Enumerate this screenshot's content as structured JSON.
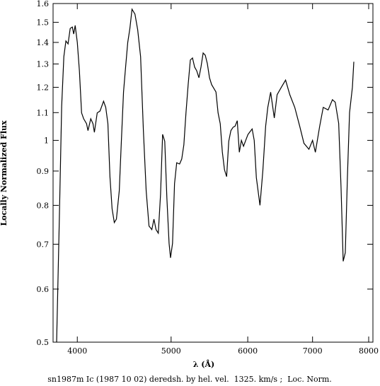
{
  "chart_data": {
    "type": "line",
    "xlabel": "λ (Å)",
    "ylabel": "Locally Normalized Flux",
    "caption": "sn1987m Ic (1987 10 02) deredsh. by hel. vel.  1325. km/s ;  Loc. Norm.",
    "xscale": "log",
    "yscale": "log",
    "xlim": [
      3776,
      8081
    ],
    "ylim": [
      0.5,
      1.6
    ],
    "xticks": [
      4000,
      5000,
      6000,
      7000,
      8000
    ],
    "yticks": [
      0.5,
      0.6,
      0.7,
      0.8,
      0.9,
      1,
      1.1,
      1.2,
      1.3,
      1.4,
      1.5,
      1.6
    ],
    "color": "#000000",
    "x": [
      3808,
      3834,
      3854,
      3874,
      3893,
      3913,
      3933,
      3953,
      3966,
      3980,
      4000,
      4020,
      4041,
      4061,
      4089,
      4103,
      4130,
      4152,
      4166,
      4194,
      4222,
      4258,
      4280,
      4302,
      4323,
      4345,
      4368,
      4390,
      4420,
      4442,
      4465,
      4487,
      4510,
      4533,
      4556,
      4588,
      4618,
      4650,
      4681,
      4712,
      4744,
      4776,
      4800,
      4824,
      4850,
      4876,
      4900,
      4925,
      4950,
      4976,
      4993,
      5017,
      5041,
      5067,
      5102,
      5128,
      5154,
      5180,
      5207,
      5234,
      5261,
      5288,
      5314,
      5342,
      5368,
      5396,
      5423,
      5450,
      5478,
      5506,
      5534,
      5563,
      5591,
      5620,
      5648,
      5677,
      5706,
      5735,
      5764,
      5794,
      5822,
      5852,
      5881,
      5910,
      5940,
      5971,
      6002,
      6032,
      6063,
      6093,
      6124,
      6177,
      6219,
      6261,
      6293,
      6336,
      6391,
      6434,
      6499,
      6565,
      6631,
      6710,
      6789,
      6858,
      6940,
      7000,
      7047,
      7120,
      7180,
      7264,
      7339,
      7388,
      7449,
      7491,
      7529,
      7567,
      7605,
      7644,
      7696,
      7722
    ],
    "values": [
      0.5,
      0.782,
      1.125,
      1.333,
      1.407,
      1.393,
      1.469,
      1.476,
      1.441,
      1.484,
      1.4,
      1.27,
      1.099,
      1.077,
      1.059,
      1.034,
      1.077,
      1.059,
      1.028,
      1.099,
      1.106,
      1.144,
      1.12,
      1.059,
      0.883,
      0.791,
      0.754,
      0.763,
      0.841,
      0.997,
      1.181,
      1.286,
      1.4,
      1.469,
      1.569,
      1.543,
      1.462,
      1.333,
      1.034,
      0.841,
      0.745,
      0.736,
      0.763,
      0.736,
      0.727,
      0.831,
      1.021,
      0.997,
      0.82,
      0.702,
      0.668,
      0.702,
      0.862,
      0.926,
      0.922,
      0.938,
      0.985,
      1.099,
      1.211,
      1.318,
      1.327,
      1.286,
      1.27,
      1.24,
      1.286,
      1.35,
      1.34,
      1.302,
      1.24,
      1.211,
      1.196,
      1.181,
      1.099,
      1.059,
      0.961,
      0.904,
      0.883,
      0.997,
      1.034,
      1.046,
      1.05,
      1.07,
      0.96,
      1.0,
      0.98,
      1.0,
      1.02,
      1.03,
      1.04,
      1.0,
      0.88,
      0.8,
      0.9,
      1.05,
      1.12,
      1.18,
      1.08,
      1.17,
      1.2,
      1.23,
      1.17,
      1.12,
      1.05,
      0.99,
      0.97,
      1.0,
      0.96,
      1.05,
      1.12,
      1.11,
      1.15,
      1.14,
      1.06,
      0.85,
      0.66,
      0.68,
      0.88,
      1.1,
      1.2,
      1.31
    ]
  }
}
